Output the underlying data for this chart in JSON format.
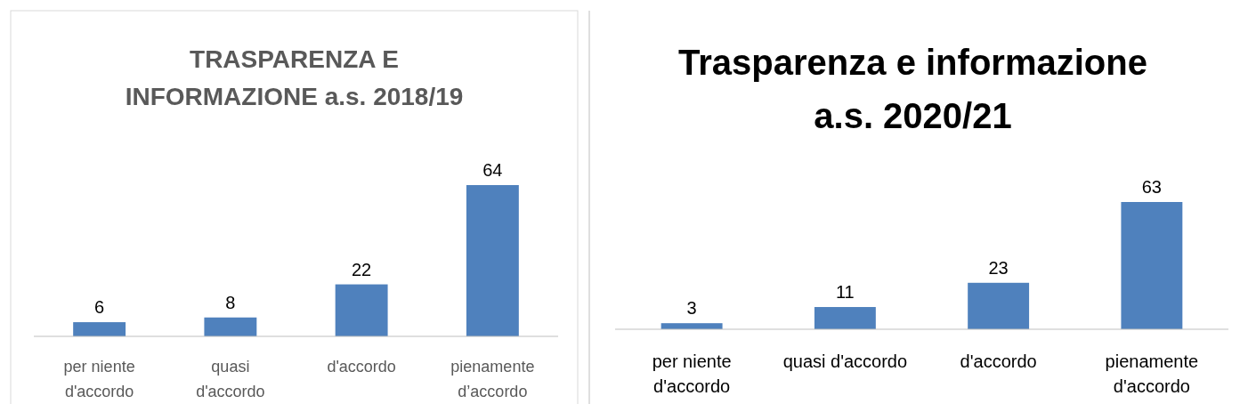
{
  "chart_data": [
    {
      "type": "bar",
      "title": "TRASPARENZA E INFORMAZIONE a.s. 2018/19",
      "categories": [
        "per niente d'accordo",
        "quasi d'accordo",
        "d'accordo",
        "pienamente d’accordo"
      ],
      "values": [
        6,
        8,
        22,
        64
      ],
      "color": "#4f81bd",
      "data_labels": true
    },
    {
      "type": "bar",
      "title": "Trasparenza e informazione a.s. 2020/21",
      "categories": [
        "per niente d'accordo",
        "quasi d'accordo",
        "d'accordo",
        "pienamente d'accordo"
      ],
      "values": [
        3,
        11,
        23,
        63
      ],
      "color": "#4f81bd",
      "data_labels": true
    }
  ]
}
